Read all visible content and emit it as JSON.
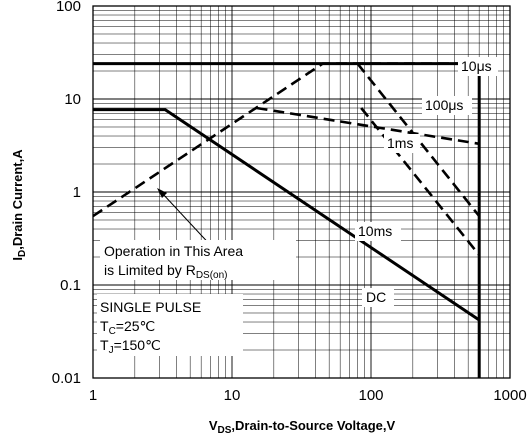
{
  "chart_data": {
    "type": "line",
    "scale": {
      "x": "log",
      "y": "log"
    },
    "xlim": [
      1,
      1000
    ],
    "ylim": [
      0.01,
      100
    ],
    "grid": true,
    "x_ticks": [
      "1",
      "10",
      "100",
      "1000"
    ],
    "y_ticks": [
      "0.01",
      "0.1",
      "1",
      "10",
      "100"
    ],
    "xlabel": {
      "main": "V",
      "sub": "DS",
      "rest": ",Drain-to-Source Voltage,V"
    },
    "ylabel": {
      "main": "I",
      "sub": "D",
      "rest": ",Drain Current,A"
    },
    "series": [
      {
        "name": "10μs",
        "style": "solid",
        "points": [
          [
            1,
            24
          ],
          [
            560,
            24
          ],
          [
            600,
            21
          ],
          [
            600,
            0.01
          ]
        ]
      },
      {
        "name": "100μs",
        "style": "dashed",
        "points": [
          [
            1,
            0.55
          ],
          [
            45,
            24
          ],
          [
            560,
            24
          ]
        ]
      },
      {
        "name": "1ms",
        "style": "dashed",
        "points": [
          [
            15,
            8
          ],
          [
            600,
            3.3
          ]
        ]
      },
      {
        "name": "10ms",
        "style": "dashed",
        "points": [
          [
            80,
            24
          ],
          [
            600,
            0.55
          ]
        ]
      },
      {
        "name": "",
        "style": "dashed",
        "points": [
          [
            85,
            8
          ],
          [
            600,
            0.21
          ]
        ]
      },
      {
        "name": "DC",
        "style": "solid",
        "points": [
          [
            1,
            7.7
          ],
          [
            3.3,
            7.7
          ],
          [
            600,
            0.042
          ]
        ]
      }
    ],
    "annotations": {
      "operation_line1": "Operation in This Area",
      "operation_line2_main": "is Limited by R",
      "operation_line2_sub": "DS(on)",
      "single_pulse": "SINGLE PULSE",
      "tc_main": "T",
      "tc_sub": "C",
      "tc_value": "=25℃",
      "tj_main": "T",
      "tj_sub": "J",
      "tj_value": "=150℃"
    }
  }
}
